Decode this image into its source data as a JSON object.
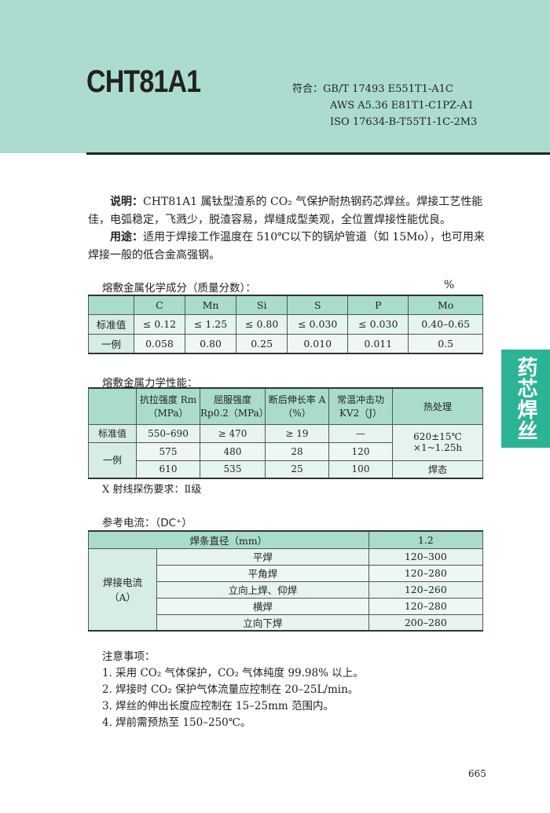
{
  "header": {
    "title": "CHT81A1",
    "standards_label": "符合：",
    "standards": [
      "GB/T 17493 E551T1-A1C",
      "AWS A5.36 E81T1-C1PZ-A1",
      "ISO 17634-B-T55T1-1C-2M3"
    ]
  },
  "description": {
    "label": "说明：",
    "text": "CHT81A1 属钛型渣系的 CO₂ 气保护耐热钢药芯焊丝。焊接工艺性能佳，电弧稳定，飞溅少，脱渣容易，焊缝成型美观，全位置焊接性能优良。"
  },
  "usage": {
    "label": "用途：",
    "text": "适用于焊接工作温度在 510℃以下的锅炉管道（如 15Mo），也可用来焊接一般的低合金高强钢。"
  },
  "chem": {
    "title": "熔敷金属化学成分（质量分数）：",
    "unit": "%",
    "headers": [
      "",
      "C",
      "Mn",
      "Si",
      "S",
      "P",
      "Mo"
    ],
    "rows": [
      [
        "标准值",
        "≤ 0.12",
        "≤ 1.25",
        "≤ 0.80",
        "≤ 0.030",
        "≤ 0.030",
        "0.40–0.65"
      ],
      [
        "一例",
        "0.058",
        "0.80",
        "0.25",
        "0.010",
        "0.011",
        "0.5"
      ]
    ]
  },
  "mech": {
    "title": "熔敷金属力学性能：",
    "headers": [
      "",
      "抗拉强度 Rm（MPa）",
      "屈服强度 Rp0.2（MPa）",
      "断后伸长率 A（%）",
      "常温冲击功 KV2（J）",
      "热处理"
    ],
    "std_label": "标准值",
    "std": [
      "550–690",
      "≥ 470",
      "≥ 19",
      "—"
    ],
    "heat1": "620±15℃ ×1~1.25h",
    "ex_label": "一例",
    "ex1": [
      "575",
      "480",
      "28",
      "120"
    ],
    "ex2": [
      "610",
      "535",
      "25",
      "100"
    ],
    "heat2": "焊态"
  },
  "xray": "X 射线探伤要求：Ⅱ级",
  "current": {
    "title": "参考电流：（DC⁺）",
    "diam_label": "焊条直径（mm）",
    "diam": "1.2",
    "group": "焊接电流（A）",
    "rows": [
      [
        "平焊",
        "120–300"
      ],
      [
        "平角焊",
        "120–280"
      ],
      [
        "立向上焊、仰焊",
        "120–260"
      ],
      [
        "横焊",
        "120–280"
      ],
      [
        "立向下焊",
        "200–280"
      ]
    ]
  },
  "notes": {
    "title": "注意事项：",
    "items": [
      "1. 采用 CO₂ 气体保护，CO₂ 气体纯度 99.98% 以上。",
      "2. 焊接时 CO₂ 保护气体流量应控制在 20–25L/min。",
      "3. 焊丝的伸出长度应控制在 15–25mm 范围内。",
      "4. 焊前需预热至 150–250℃。"
    ]
  },
  "side_tab": "药芯焊丝",
  "page_number": "665"
}
